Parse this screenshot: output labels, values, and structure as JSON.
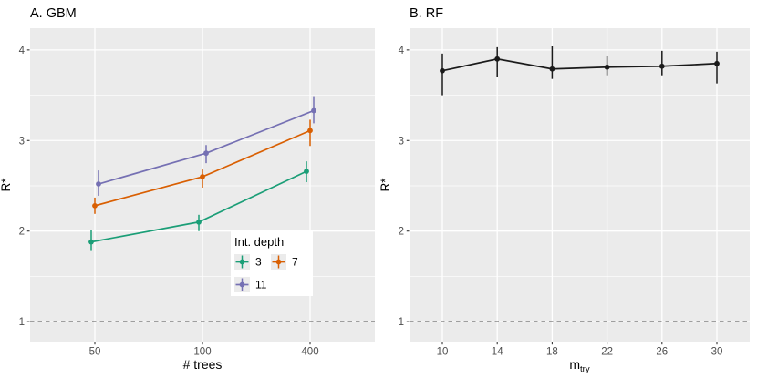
{
  "page": {
    "background": "#ffffff",
    "panel_background": "#ebebeb",
    "grid_color": "#ffffff"
  },
  "chart_data": [
    {
      "id": "panel-a",
      "type": "line",
      "title": "A. GBM",
      "xlabel": "# trees",
      "ylabel": "R*",
      "x_type": "discrete",
      "categories": [
        "50",
        "100",
        "400"
      ],
      "ylim": [
        0.78,
        4.24
      ],
      "yticks": [
        1,
        2,
        3,
        4
      ],
      "yticks_minor": [
        1.5,
        2.5,
        3.5
      ],
      "grid": true,
      "reference_hline": {
        "y": 1,
        "style": "dashed",
        "color": "#1a1a1a"
      },
      "legend": {
        "title": "Int. depth",
        "position": "inside-bottom-right",
        "columns": 2
      },
      "series": [
        {
          "name": "3",
          "color": "#1b9e77",
          "values": [
            1.88,
            2.1,
            2.66
          ],
          "err_lo": [
            1.78,
            2.0,
            2.54
          ],
          "err_hi": [
            2.01,
            2.18,
            2.77
          ]
        },
        {
          "name": "7",
          "color": "#d95f02",
          "values": [
            2.28,
            2.6,
            3.11
          ],
          "err_lo": [
            2.19,
            2.48,
            2.94
          ],
          "err_hi": [
            2.37,
            2.68,
            3.23
          ]
        },
        {
          "name": "11",
          "color": "#7570b3",
          "values": [
            2.52,
            2.86,
            3.33
          ],
          "err_lo": [
            2.39,
            2.75,
            3.19
          ],
          "err_hi": [
            2.67,
            2.95,
            3.49
          ]
        }
      ]
    },
    {
      "id": "panel-b",
      "type": "line",
      "title": "B. RF",
      "xlabel": {
        "main": "m",
        "sub": "try"
      },
      "ylabel": "R*",
      "x_type": "discrete",
      "categories": [
        "10",
        "14",
        "18",
        "22",
        "26",
        "30"
      ],
      "ylim": [
        0.78,
        4.24
      ],
      "yticks": [
        1,
        2,
        3,
        4
      ],
      "yticks_minor": [
        1.5,
        2.5,
        3.5
      ],
      "grid": true,
      "reference_hline": {
        "y": 1,
        "style": "dashed",
        "color": "#1a1a1a"
      },
      "legend": null,
      "series": [
        {
          "name": "RF",
          "color": "#1a1a1a",
          "values": [
            3.77,
            3.9,
            3.79,
            3.81,
            3.82,
            3.85
          ],
          "err_lo": [
            3.5,
            3.7,
            3.68,
            3.72,
            3.72,
            3.63
          ],
          "err_hi": [
            3.96,
            4.03,
            4.04,
            3.93,
            3.99,
            3.98
          ]
        }
      ]
    }
  ],
  "style": {
    "tick_label_color": "#4d4d4d",
    "tick_mark_color": "#333333",
    "title_color": "#000000"
  }
}
